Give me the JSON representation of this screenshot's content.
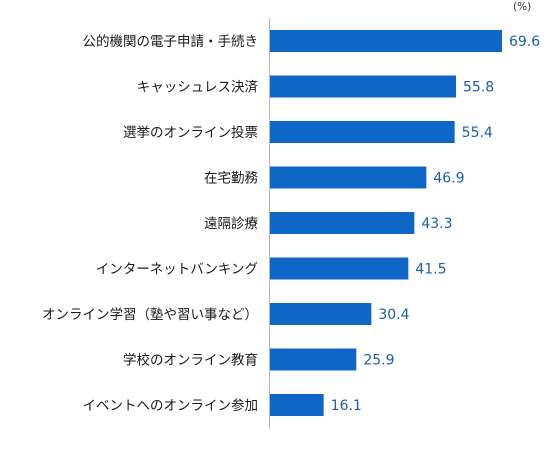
{
  "chart_data": {
    "type": "bar",
    "orientation": "horizontal",
    "unit": "(%)",
    "categories": [
      "公的機関の電子申請・手続き",
      "キャッシュレス決済",
      "選挙のオンライン投票",
      "在宅勤務",
      "遠隔診療",
      "インターネットバンキング",
      "オンライン学習（塾や習い事など）",
      "学校のオンライン教育",
      "イベントへのオンライン参加"
    ],
    "values": [
      69.6,
      55.8,
      55.4,
      46.9,
      43.3,
      41.5,
      30.4,
      25.9,
      16.1
    ],
    "value_labels": [
      "69.6",
      "55.8",
      "55.4",
      "46.9",
      "43.3",
      "41.5",
      "30.4",
      "25.9",
      "16.1"
    ],
    "bar_color": "#0e66c7",
    "label_color": "#1a5fa8",
    "xlim": [
      0,
      100
    ],
    "grid": false
  }
}
